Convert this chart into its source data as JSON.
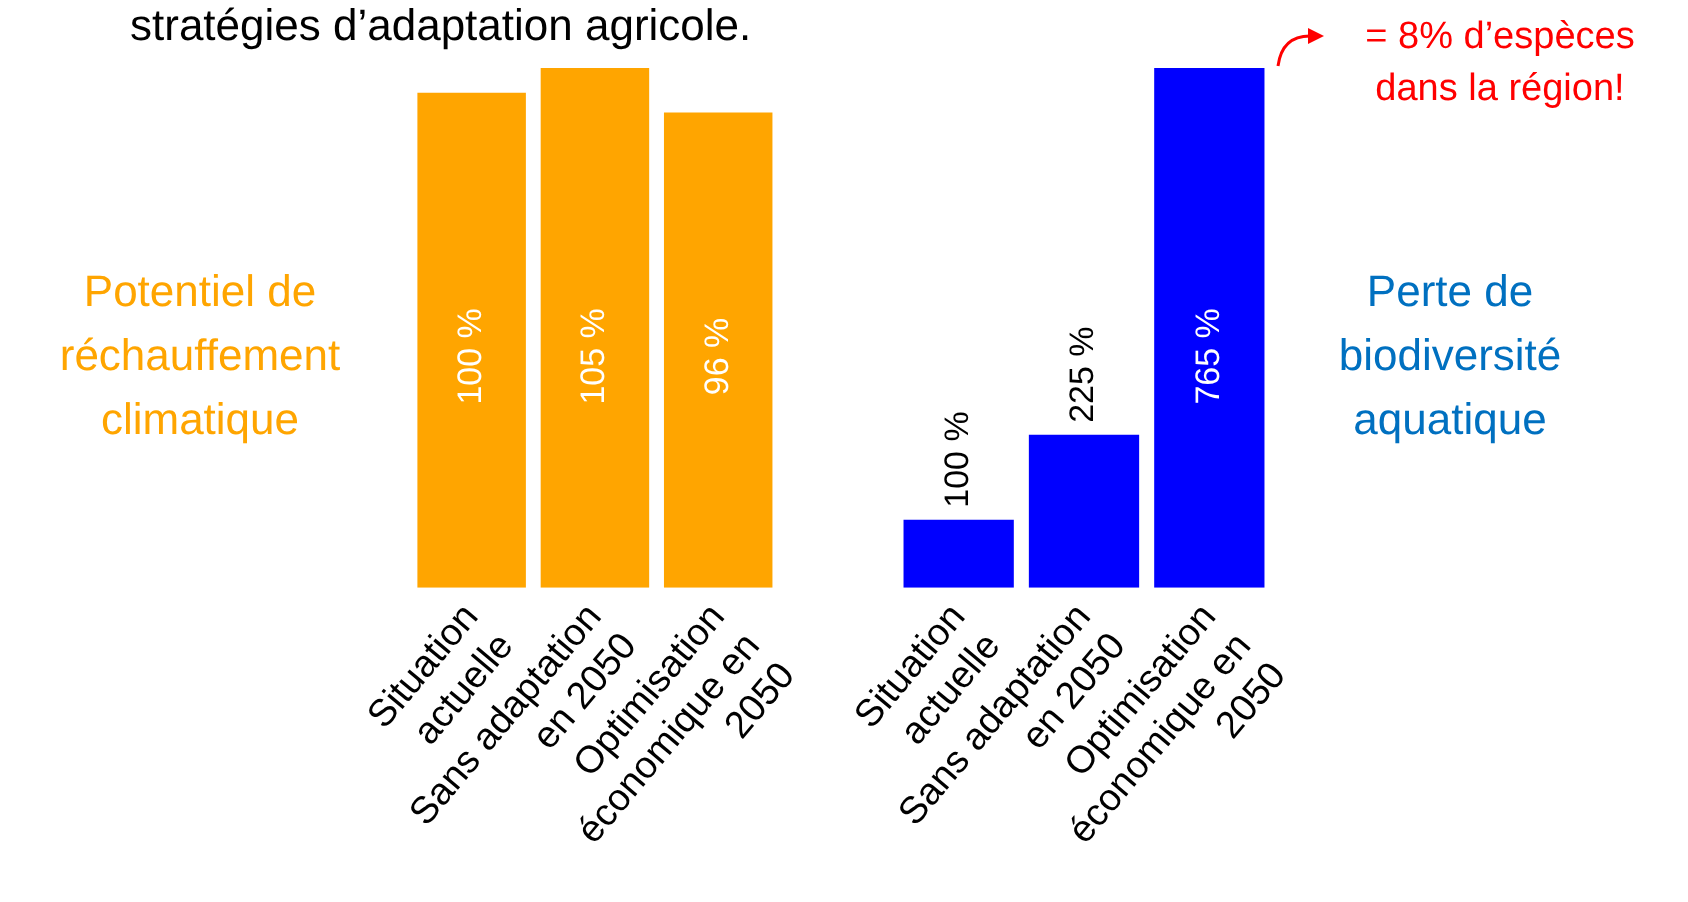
{
  "chart_data": [
    {
      "type": "bar",
      "title": "stratégies d’adaptation agricole.",
      "ylabel": "Potentiel de réchauffement climatique",
      "categories": [
        "Situation actuelle",
        "Sans adaptation en 2050",
        "Optimisation économique en 2050"
      ],
      "values": [
        100,
        105,
        96
      ],
      "color": "#ffa500",
      "value_labels": [
        "100 %",
        "105 %",
        "96 %"
      ],
      "grid": false,
      "legend": false
    },
    {
      "type": "bar",
      "ylabel": "Perte de biodiversité aquatique",
      "categories": [
        "Situation actuelle",
        "Sans adaptation en 2050",
        "Optimisation économique en 2050"
      ],
      "values": [
        100,
        225,
        765
      ],
      "color": "#0000ff",
      "value_labels": [
        "100 %",
        "225 %",
        "765 %"
      ],
      "annotations": [
        "= 8% d’espèces dans la région!"
      ],
      "grid": false,
      "legend": false
    }
  ]
}
